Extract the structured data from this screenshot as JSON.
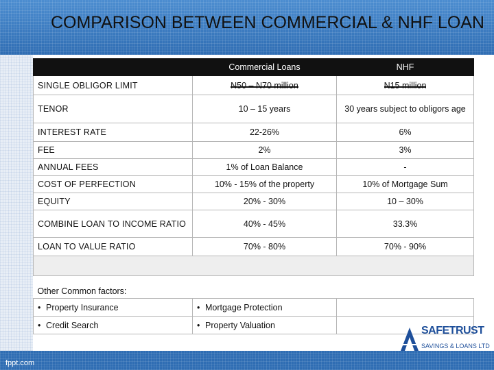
{
  "title": "COMPARISON BETWEEN COMMERCIAL & NHF LOAN",
  "table": {
    "headers": [
      "",
      "Commercial Loans",
      "NHF"
    ],
    "rows": [
      {
        "label": "SINGLE OBLIGOR LIMIT",
        "commercial": "N50 – N70 million",
        "nhf": "N15 million"
      },
      {
        "label": "TENOR",
        "commercial": "10 – 15 years",
        "nhf": "30 years subject to obligors age"
      },
      {
        "label": "INTEREST RATE",
        "commercial": "22-26%",
        "nhf": "6%"
      },
      {
        "label": "FEE",
        "commercial": "2%",
        "nhf": "3%"
      },
      {
        "label": "ANNUAL FEES",
        "commercial": "1% of Loan Balance",
        "nhf": "-"
      },
      {
        "label": "COST OF PERFECTION",
        "commercial": "10% - 15% of the property",
        "nhf": "10% of Mortgage Sum"
      },
      {
        "label": "EQUITY",
        "commercial": "20% - 30%",
        "nhf": "10 – 30%"
      },
      {
        "label": "COMBINE LOAN TO INCOME RATIO",
        "commercial": "40% - 45%",
        "nhf": "33.3%"
      },
      {
        "label": "LOAN TO VALUE RATIO",
        "commercial": "70% - 80%",
        "nhf": "70% - 90%"
      }
    ]
  },
  "other_factors": {
    "heading": "Other Common factors:",
    "items": [
      [
        "Property Insurance",
        "Mortgage Protection"
      ],
      [
        "Credit Search",
        "Property Valuation"
      ]
    ],
    "bullet": "•"
  },
  "logo": {
    "name": "SAFETRUST",
    "sub": "SAVINGS & LOANS LTD"
  },
  "footer": {
    "text": "fppt.com"
  }
}
